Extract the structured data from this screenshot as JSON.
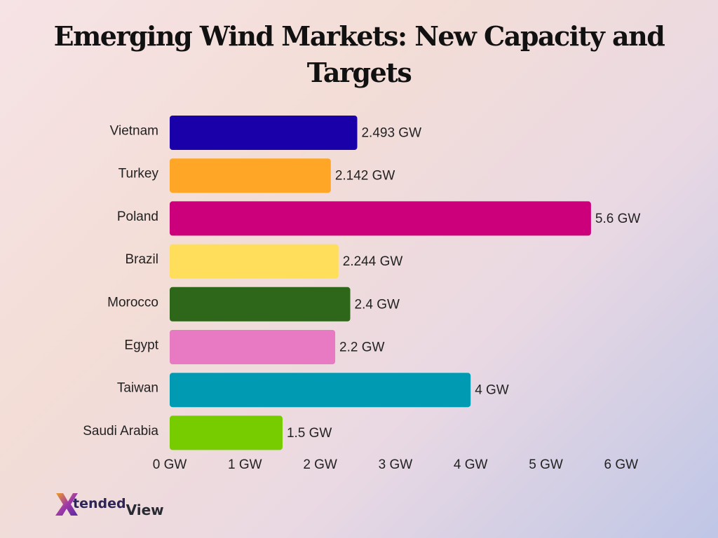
{
  "title": "Emerging Wind Markets: New Capacity and Targets",
  "logo": {
    "text_part1": "tended",
    "text_part2": "View",
    "mark_letter": "X",
    "icon": "xtendedview-logo"
  },
  "chart_data": {
    "type": "bar",
    "orientation": "horizontal",
    "title": "Emerging Wind Markets: New Capacity and Targets",
    "xlabel": "",
    "ylabel": "",
    "categories": [
      "Vietnam",
      "Turkey",
      "Poland",
      "Brazil",
      "Morocco",
      "Egypt",
      "Taiwan",
      "Saudi Arabia"
    ],
    "values": [
      2.493,
      2.142,
      5.6,
      2.244,
      2.4,
      2.2,
      4,
      1.5
    ],
    "value_labels": [
      "2.493 GW",
      "2.142 GW",
      "5.6 GW",
      "2.244 GW",
      "2.4 GW",
      "2.2 GW",
      "4 GW",
      "1.5 GW"
    ],
    "colors": [
      "#1a00a8",
      "#ffa626",
      "#cc007a",
      "#ffde5c",
      "#2e661a",
      "#e879c3",
      "#009ab2",
      "#77cc00"
    ],
    "xlim": [
      0,
      6
    ],
    "xticks": [
      0,
      1,
      2,
      3,
      4,
      5,
      6
    ],
    "xtick_labels": [
      "0 GW",
      "1 GW",
      "2 GW",
      "3 GW",
      "4 GW",
      "5 GW",
      "6 GW"
    ],
    "grid": false,
    "legend": "none"
  }
}
